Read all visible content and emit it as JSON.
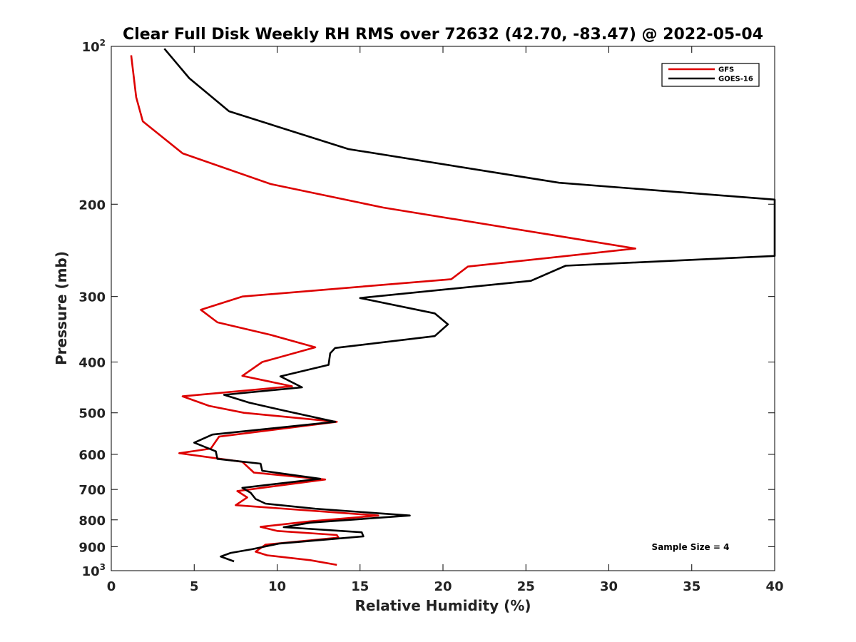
{
  "chart_data": {
    "type": "line",
    "title": "Clear Full Disk Weekly RH RMS over 72632 (42.70, -83.47) @ 2022-05-04",
    "xlabel": "Relative Humidity (%)",
    "ylabel": "Pressure (mb)",
    "xlim": [
      0,
      40
    ],
    "ylim": [
      100,
      1000
    ],
    "y_scale": "log",
    "y_reversed": true,
    "grid": false,
    "x_ticks": [
      "0",
      "5",
      "10",
      "15",
      "20",
      "25",
      "30",
      "35",
      "40"
    ],
    "x_tick_values": [
      0,
      5,
      10,
      15,
      20,
      25,
      30,
      35,
      40
    ],
    "y_ticks": [
      {
        "value": 100,
        "base": "10",
        "sup": "2"
      },
      {
        "value": 200,
        "base": "200",
        "sup": ""
      },
      {
        "value": 300,
        "base": "300",
        "sup": ""
      },
      {
        "value": 400,
        "base": "400",
        "sup": ""
      },
      {
        "value": 500,
        "base": "500",
        "sup": ""
      },
      {
        "value": 600,
        "base": "600",
        "sup": ""
      },
      {
        "value": 700,
        "base": "700",
        "sup": ""
      },
      {
        "value": 800,
        "base": "800",
        "sup": ""
      },
      {
        "value": 900,
        "base": "900",
        "sup": ""
      },
      {
        "value": 1000,
        "base": "10",
        "sup": "3"
      }
    ],
    "legend_position": "top-right",
    "series": [
      {
        "name": "GFS",
        "color": "#dd0000",
        "points": [
          [
            13.6,
            975
          ],
          [
            12.0,
            955
          ],
          [
            9.4,
            935
          ],
          [
            8.7,
            920
          ],
          [
            9.3,
            892
          ],
          [
            13.7,
            865
          ],
          [
            13.6,
            855
          ],
          [
            10.0,
            840
          ],
          [
            9.0,
            825
          ],
          [
            12.0,
            805
          ],
          [
            16.1,
            785
          ],
          [
            7.5,
            750
          ],
          [
            8.2,
            725
          ],
          [
            7.6,
            705
          ],
          [
            12.9,
            670
          ],
          [
            8.6,
            650
          ],
          [
            7.9,
            620
          ],
          [
            4.1,
            597
          ],
          [
            6.0,
            585
          ],
          [
            6.5,
            555
          ],
          [
            13.6,
            520
          ],
          [
            8.0,
            500
          ],
          [
            5.9,
            485
          ],
          [
            4.3,
            465
          ],
          [
            10.9,
            445
          ],
          [
            7.9,
            425
          ],
          [
            9.1,
            400
          ],
          [
            12.3,
            375
          ],
          [
            9.6,
            355
          ],
          [
            6.4,
            336
          ],
          [
            5.4,
            318
          ],
          [
            7.9,
            300
          ],
          [
            20.5,
            278
          ],
          [
            21.5,
            263
          ],
          [
            31.6,
            243
          ],
          [
            16.4,
            203
          ],
          [
            9.6,
            183
          ],
          [
            4.3,
            160
          ],
          [
            1.9,
            139
          ],
          [
            1.5,
            125
          ],
          [
            1.2,
            104
          ]
        ]
      },
      {
        "name": "GOES-16",
        "color": "#000000",
        "points": [
          [
            7.4,
            960
          ],
          [
            6.6,
            940
          ],
          [
            7.2,
            925
          ],
          [
            8.5,
            910
          ],
          [
            10.1,
            888
          ],
          [
            15.2,
            860
          ],
          [
            15.1,
            845
          ],
          [
            10.4,
            826
          ],
          [
            12.0,
            810
          ],
          [
            18.0,
            785
          ],
          [
            12.3,
            762
          ],
          [
            9.3,
            745
          ],
          [
            8.7,
            730
          ],
          [
            8.4,
            710
          ],
          [
            7.9,
            695
          ],
          [
            12.6,
            668
          ],
          [
            9.1,
            645
          ],
          [
            9.0,
            625
          ],
          [
            6.4,
            612
          ],
          [
            6.3,
            592
          ],
          [
            5.0,
            570
          ],
          [
            6.1,
            550
          ],
          [
            13.5,
            520
          ],
          [
            10.4,
            495
          ],
          [
            8.3,
            478
          ],
          [
            6.8,
            462
          ],
          [
            11.5,
            447
          ],
          [
            10.2,
            426
          ],
          [
            13.1,
            405
          ],
          [
            13.2,
            385
          ],
          [
            13.5,
            376
          ],
          [
            19.5,
            357
          ],
          [
            20.3,
            339
          ],
          [
            19.5,
            323
          ],
          [
            15.0,
            302
          ],
          [
            25.3,
            280
          ],
          [
            27.4,
            262
          ],
          [
            40.0,
            251
          ],
          [
            40.0,
            196
          ],
          [
            27.0,
            182
          ],
          [
            14.3,
            157
          ],
          [
            7.1,
            133
          ],
          [
            4.7,
            115
          ],
          [
            3.2,
            101
          ]
        ]
      }
    ],
    "annotation": "Sample Size = 4"
  }
}
